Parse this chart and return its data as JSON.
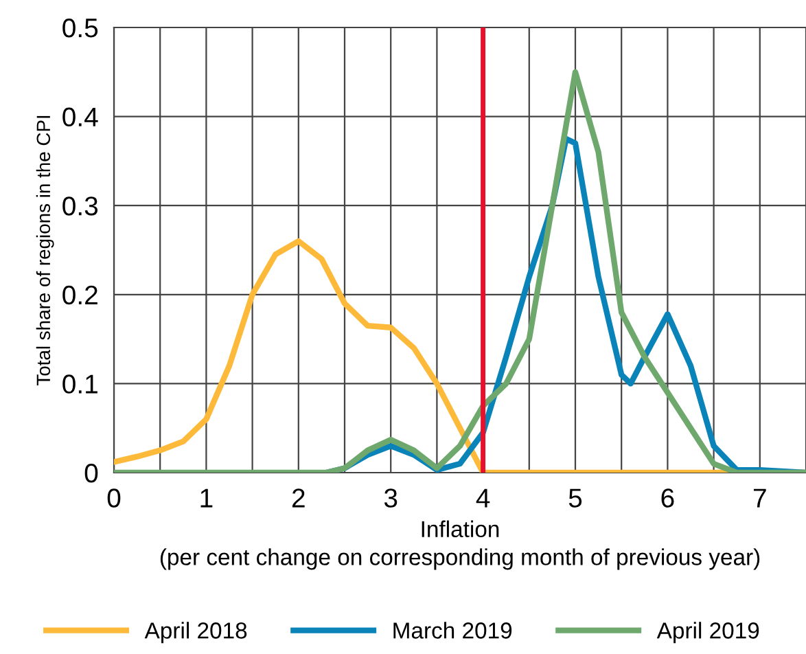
{
  "chart_data": {
    "type": "line",
    "xlabel": "Inflation\n(per cent change on corresponding month of previous year)",
    "ylabel": "Total share of regions in the CPI",
    "xlim": [
      0,
      7.5
    ],
    "xticks": [
      0,
      1,
      2,
      3,
      4,
      5,
      6,
      7
    ],
    "ylim": [
      0,
      0.5
    ],
    "yticks": [
      0,
      0.1,
      0.2,
      0.3,
      0.4,
      0.5
    ],
    "grid": true,
    "legend": "bottom",
    "marker": "none",
    "line_style": "solid",
    "ref_lines": [
      {
        "axis": "x",
        "value": 4,
        "color": "#e8112d"
      }
    ],
    "series": [
      {
        "name": "April 2018",
        "color": "#fdb93a",
        "x": [
          0,
          0.25,
          0.5,
          0.75,
          1,
          1.25,
          1.5,
          1.75,
          2,
          2.25,
          2.5,
          2.75,
          3,
          3.25,
          3.5,
          3.75,
          4,
          4.25,
          5,
          6,
          7,
          7.5
        ],
        "values": [
          0.012,
          0.018,
          0.025,
          0.035,
          0.06,
          0.12,
          0.2,
          0.245,
          0.26,
          0.24,
          0.19,
          0.165,
          0.163,
          0.14,
          0.1,
          0.05,
          0.0,
          0.0,
          0.0,
          0.0,
          0.0,
          0.0
        ]
      },
      {
        "name": "March 2019",
        "color": "#0a83b8",
        "x": [
          2.3,
          2.5,
          2.75,
          3,
          3.25,
          3.5,
          3.75,
          4,
          4.25,
          4.5,
          4.75,
          4.9,
          5,
          5.25,
          5.5,
          5.6,
          5.75,
          6,
          6.25,
          6.5,
          6.75,
          7,
          7.5
        ],
        "values": [
          0,
          0.005,
          0.02,
          0.03,
          0.02,
          0.003,
          0.01,
          0.045,
          0.13,
          0.22,
          0.3,
          0.375,
          0.37,
          0.22,
          0.11,
          0.1,
          0.13,
          0.178,
          0.12,
          0.03,
          0.003,
          0.003,
          0
        ]
      },
      {
        "name": "April 2019",
        "color": "#6fa86c",
        "x": [
          0,
          1,
          2,
          2.3,
          2.5,
          2.75,
          3,
          3.25,
          3.5,
          3.75,
          4,
          4.25,
          4.5,
          4.75,
          5,
          5.25,
          5.5,
          5.75,
          6,
          6.25,
          6.5,
          6.75,
          7,
          7.5
        ],
        "values": [
          0,
          0,
          0,
          0,
          0.005,
          0.025,
          0.037,
          0.025,
          0.005,
          0.03,
          0.075,
          0.1,
          0.15,
          0.3,
          0.45,
          0.36,
          0.18,
          0.13,
          0.09,
          0.05,
          0.01,
          0,
          0,
          0
        ]
      }
    ]
  }
}
